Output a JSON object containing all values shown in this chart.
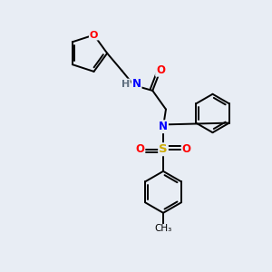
{
  "bg_color": "#e8edf4",
  "atom_colors": {
    "C": "#000000",
    "N": "#0000ff",
    "O": "#ff0000",
    "S": "#ccaa00",
    "H": "#607080"
  },
  "line_color": "#000000",
  "line_width": 1.4,
  "figsize": [
    3.0,
    3.0
  ],
  "dpi": 100
}
